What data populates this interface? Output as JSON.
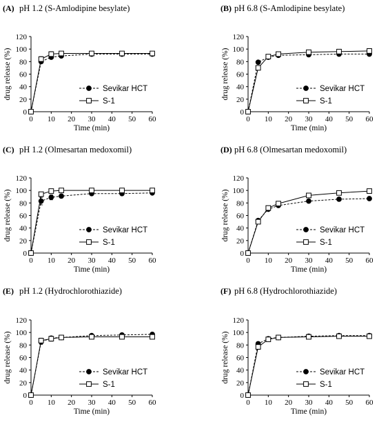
{
  "chart_data": [
    {
      "type": "line",
      "panel": "(A)",
      "title": "pH 1.2 (S-Amlodipine besylate)",
      "xlabel": "Time (min)",
      "ylabel": "drug release (%)",
      "xlim": [
        0,
        60
      ],
      "ylim": [
        0,
        120
      ],
      "x_ticks": [
        "0",
        "10",
        "20",
        "30",
        "40",
        "50",
        "60"
      ],
      "y_ticks": [
        "0",
        "20",
        "40",
        "60",
        "80",
        "100",
        "120"
      ],
      "x": [
        0,
        5,
        10,
        15,
        30,
        45,
        60
      ],
      "legend_position": "lower-right",
      "series": [
        {
          "name": "Sevikar HCT",
          "values": [
            0,
            80,
            87,
            89,
            92,
            92,
            92
          ],
          "errors": [
            0,
            3,
            2,
            2,
            1,
            1,
            1
          ],
          "style": "dashed",
          "marker": "filled-circle"
        },
        {
          "name": "S-1",
          "values": [
            0,
            84,
            92,
            93,
            93,
            93,
            93
          ],
          "errors": [
            0,
            4,
            4,
            2,
            1,
            1,
            1
          ],
          "style": "solid",
          "marker": "open-square"
        }
      ]
    },
    {
      "type": "line",
      "panel": "(B)",
      "title": "pH 6.8 (S-Amlodipine besylate)",
      "xlabel": "Time (min)",
      "ylabel": "drug release (%)",
      "xlim": [
        0,
        60
      ],
      "ylim": [
        0,
        120
      ],
      "x_ticks": [
        "0",
        "10",
        "20",
        "30",
        "40",
        "50",
        "60"
      ],
      "y_ticks": [
        "0",
        "20",
        "40",
        "60",
        "80",
        "100",
        "120"
      ],
      "x": [
        0,
        5,
        10,
        15,
        30,
        45,
        60
      ],
      "legend_position": "lower-right",
      "series": [
        {
          "name": "Sevikar HCT",
          "values": [
            0,
            79,
            87,
            90,
            91,
            92,
            92
          ],
          "errors": [
            0,
            2,
            2,
            1,
            1,
            1,
            1
          ],
          "style": "dashed",
          "marker": "filled-circle"
        },
        {
          "name": "S-1",
          "values": [
            0,
            70,
            88,
            92,
            95,
            96,
            97
          ],
          "errors": [
            0,
            3,
            2,
            1,
            1,
            1,
            1
          ],
          "style": "solid",
          "marker": "open-square"
        }
      ]
    },
    {
      "type": "line",
      "panel": "(C)",
      "title": "pH 1.2 (Olmesartan medoxomil)",
      "xlabel": "Time (min)",
      "ylabel": "drug release (%)",
      "xlim": [
        0,
        60
      ],
      "ylim": [
        0,
        120
      ],
      "x_ticks": [
        "0",
        "10",
        "20",
        "30",
        "40",
        "50",
        "60"
      ],
      "y_ticks": [
        "0",
        "20",
        "40",
        "60",
        "80",
        "100",
        "120"
      ],
      "x": [
        0,
        5,
        10,
        15,
        30,
        45,
        60
      ],
      "legend_position": "lower-right",
      "series": [
        {
          "name": "Sevikar HCT",
          "values": [
            0,
            83,
            89,
            91,
            95,
            95,
            96
          ],
          "errors": [
            0,
            6,
            4,
            3,
            2,
            2,
            2
          ],
          "style": "dashed",
          "marker": "filled-circle"
        },
        {
          "name": "S-1",
          "values": [
            0,
            94,
            99,
            100,
            100,
            100,
            100
          ],
          "errors": [
            0,
            2,
            1,
            1,
            1,
            1,
            1
          ],
          "style": "solid",
          "marker": "open-square"
        }
      ]
    },
    {
      "type": "line",
      "panel": "(D)",
      "title": "pH 6.8 (Olmesartan medoxomil)",
      "xlabel": "Time (min)",
      "ylabel": "drug release (%)",
      "xlim": [
        0,
        60
      ],
      "ylim": [
        0,
        120
      ],
      "x_ticks": [
        "0",
        "10",
        "20",
        "30",
        "40",
        "50",
        "60"
      ],
      "y_ticks": [
        "0",
        "20",
        "40",
        "60",
        "80",
        "100",
        "120"
      ],
      "x": [
        0,
        5,
        10,
        15,
        30,
        45,
        60
      ],
      "legend_position": "lower-right",
      "series": [
        {
          "name": "Sevikar HCT",
          "values": [
            0,
            52,
            70,
            76,
            83,
            86,
            87
          ],
          "errors": [
            0,
            2,
            2,
            2,
            1,
            1,
            1
          ],
          "style": "dashed",
          "marker": "filled-circle"
        },
        {
          "name": "S-1",
          "values": [
            0,
            50,
            72,
            79,
            92,
            96,
            99
          ],
          "errors": [
            0,
            2,
            2,
            1,
            1,
            1,
            1
          ],
          "style": "solid",
          "marker": "open-square"
        }
      ]
    },
    {
      "type": "line",
      "panel": "(E)",
      "title": "pH 1.2 (Hydrochlorothiazide)",
      "xlabel": "Time (min)",
      "ylabel": "drug release (%)",
      "xlim": [
        0,
        60
      ],
      "ylim": [
        0,
        120
      ],
      "x_ticks": [
        "0",
        "10",
        "20",
        "30",
        "40",
        "50",
        "60"
      ],
      "y_ticks": [
        "0",
        "20",
        "40",
        "60",
        "80",
        "100",
        "120"
      ],
      "x": [
        0,
        5,
        10,
        15,
        30,
        45,
        60
      ],
      "legend_position": "lower-right",
      "series": [
        {
          "name": "Sevikar HCT",
          "values": [
            0,
            85,
            91,
            92,
            95,
            96,
            97
          ],
          "errors": [
            0,
            4,
            3,
            2,
            1,
            1,
            1
          ],
          "style": "dashed",
          "marker": "filled-circle"
        },
        {
          "name": "S-1",
          "values": [
            0,
            87,
            90,
            92,
            93,
            93,
            93
          ],
          "errors": [
            0,
            4,
            4,
            3,
            1,
            1,
            1
          ],
          "style": "solid",
          "marker": "open-square"
        }
      ]
    },
    {
      "type": "line",
      "panel": "(F)",
      "title": "pH 6.8 (Hydrochlorothiazide)",
      "xlabel": "Time (min)",
      "ylabel": "drug release (%)",
      "xlim": [
        0,
        60
      ],
      "ylim": [
        0,
        120
      ],
      "x_ticks": [
        "0",
        "10",
        "20",
        "30",
        "40",
        "50",
        "60"
      ],
      "y_ticks": [
        "0",
        "20",
        "40",
        "60",
        "80",
        "100",
        "120"
      ],
      "x": [
        0,
        5,
        10,
        15,
        30,
        45,
        60
      ],
      "legend_position": "lower-right",
      "series": [
        {
          "name": "Sevikar HCT",
          "values": [
            0,
            82,
            90,
            92,
            94,
            95,
            95
          ],
          "errors": [
            0,
            3,
            2,
            1,
            1,
            1,
            1
          ],
          "style": "dashed",
          "marker": "filled-circle"
        },
        {
          "name": "S-1",
          "values": [
            0,
            77,
            89,
            92,
            93,
            94,
            94
          ],
          "errors": [
            0,
            4,
            2,
            1,
            1,
            1,
            1
          ],
          "style": "solid",
          "marker": "open-square"
        }
      ]
    }
  ]
}
